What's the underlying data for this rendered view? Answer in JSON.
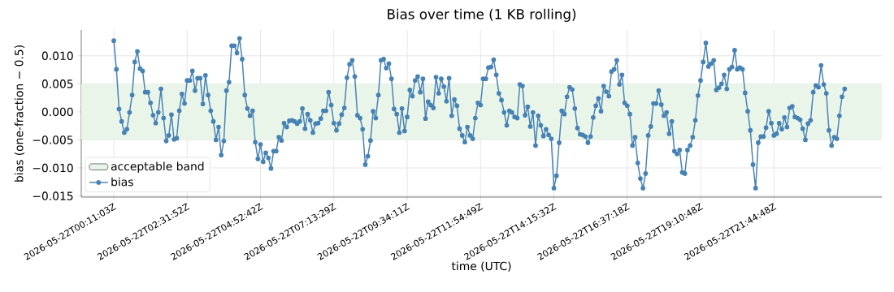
{
  "chart_data": {
    "type": "line",
    "title": "Bias over time (1 KB rolling)",
    "xlabel": "time (UTC)",
    "ylabel": "bias (one-fraction − 0.5)",
    "categories": [
      "2026-05-22T00:11:03Z",
      null,
      null,
      null,
      null,
      null,
      null,
      null,
      null,
      null,
      null,
      null,
      null,
      null,
      null,
      null,
      null,
      null,
      null,
      null,
      null,
      null,
      null,
      null,
      null,
      null,
      null,
      null,
      "2026-05-22T02:31:52Z",
      null,
      null,
      null,
      null,
      null,
      null,
      null,
      null,
      null,
      null,
      null,
      null,
      null,
      null,
      null,
      null,
      null,
      null,
      null,
      null,
      null,
      null,
      null,
      null,
      null,
      null,
      null,
      "2026-05-22T04:52:42Z",
      null,
      null,
      null,
      null,
      null,
      null,
      null,
      null,
      null,
      null,
      null,
      null,
      null,
      null,
      null,
      null,
      null,
      null,
      null,
      null,
      null,
      null,
      null,
      null,
      null,
      null,
      null,
      "2026-05-22T07:13:29Z",
      null,
      null,
      null,
      null,
      null,
      null,
      null,
      null,
      null,
      null,
      null,
      null,
      null,
      null,
      null,
      null,
      null,
      null,
      null,
      null,
      null,
      null,
      null,
      null,
      null,
      null,
      null,
      "2026-05-22T09:34:11Z",
      null,
      null,
      null,
      null,
      null,
      null,
      null,
      null,
      null,
      null,
      null,
      null,
      null,
      null,
      null,
      null,
      null,
      null,
      null,
      null,
      null,
      null,
      null,
      null,
      null,
      null,
      null,
      "2026-05-22T11:54:49Z",
      null,
      null,
      null,
      null,
      null,
      null,
      null,
      null,
      null,
      null,
      null,
      null,
      null,
      null,
      null,
      null,
      null,
      null,
      null,
      null,
      null,
      null,
      null,
      null,
      null,
      null,
      null,
      "2026-05-22T14:15:32Z",
      null,
      null,
      null,
      null,
      null,
      null,
      null,
      null,
      null,
      null,
      null,
      null,
      null,
      null,
      null,
      null,
      null,
      null,
      null,
      null,
      null,
      null,
      null,
      null,
      null,
      null,
      null,
      "2026-05-22T16:37:18Z",
      null,
      null,
      null,
      null,
      null,
      null,
      null,
      null,
      null,
      null,
      null,
      null,
      null,
      null,
      null,
      null,
      null,
      null,
      null,
      null,
      null,
      null,
      null,
      null,
      null,
      null,
      null,
      "2026-05-22T19:10:48Z",
      null,
      null,
      null,
      null,
      null,
      null,
      null,
      null,
      null,
      null,
      null,
      null,
      null,
      null,
      null,
      null,
      null,
      null,
      null,
      null,
      null,
      null,
      null,
      null,
      null,
      null,
      null,
      "2026-05-22T21:44:48Z",
      null,
      null,
      null,
      null,
      null,
      null,
      null,
      null,
      null,
      null,
      null,
      null,
      null,
      null,
      null,
      null,
      null,
      null,
      null,
      null,
      null,
      null,
      null,
      null,
      null,
      null,
      null
    ],
    "series": [
      {
        "name": "bias",
        "color": "#4682b4",
        "values": [
          0.0127,
          0.0076,
          0.0005,
          -0.0017,
          -0.0037,
          -0.0031,
          -0.0001,
          0.003,
          0.0089,
          0.0108,
          0.0077,
          0.0073,
          0.0035,
          0.0035,
          0.0016,
          -0.0006,
          -0.002,
          -0.0001,
          0.0041,
          -0.0011,
          -0.0052,
          -0.0042,
          -0.0005,
          -0.0049,
          -0.0047,
          0.0002,
          0.0032,
          0.0015,
          0.0056,
          0.0056,
          0.0073,
          0.0038,
          0.006,
          0.006,
          0.0014,
          0.0065,
          0.003,
          0.0002,
          -0.0017,
          -0.005,
          -0.0027,
          -0.0077,
          -0.0052,
          0.0038,
          0.0053,
          0.0118,
          0.0118,
          0.0105,
          0.0131,
          0.0094,
          0.003,
          0.0006,
          -0.0007,
          0.0002,
          -0.0054,
          -0.0084,
          -0.0058,
          -0.0089,
          -0.0073,
          -0.0082,
          -0.0101,
          -0.007,
          -0.007,
          -0.0045,
          -0.0051,
          -0.002,
          -0.0027,
          -0.0016,
          -0.0015,
          -0.0017,
          -0.0021,
          -0.0017,
          0.0006,
          -0.003,
          -0.0004,
          -0.0015,
          -0.0037,
          -0.0021,
          -0.002,
          -0.0012,
          0.0002,
          0.0002,
          0.0035,
          0.0012,
          -0.002,
          -0.0033,
          -0.0021,
          -0.0005,
          0.0007,
          0.0061,
          0.0085,
          0.0092,
          0.0063,
          -0.0006,
          -0.0011,
          -0.0031,
          -0.0094,
          -0.0079,
          -0.0051,
          0.0001,
          -0.0011,
          0.003,
          0.0092,
          0.0094,
          0.0078,
          0.0086,
          0.0059,
          0.0005,
          -0.0004,
          -0.0037,
          0.0006,
          -0.0034,
          -0.0009,
          0.0039,
          0.0028,
          0.0056,
          0.0063,
          0.0035,
          0.0059,
          -0.0012,
          0.0018,
          0.0012,
          0.0007,
          0.0062,
          0.0033,
          0.0059,
          0.0045,
          0.0019,
          0.006,
          -0.0007,
          0.0022,
          0.0011,
          -0.003,
          -0.0042,
          -0.0054,
          -0.0027,
          -0.0042,
          -0.0048,
          -0.0011,
          0.0016,
          0.0012,
          0.0059,
          0.0059,
          0.0079,
          0.008,
          0.0093,
          0.0066,
          0.0033,
          0.0021,
          -0.0001,
          -0.0024,
          0.0002,
          -0.0001,
          -0.0009,
          -0.0011,
          0.0049,
          0.0046,
          -0.0006,
          0.0009,
          -0.0026,
          -0.0001,
          -0.006,
          -0.0007,
          -0.0024,
          -0.0043,
          -0.0031,
          -0.0041,
          -0.0048,
          -0.0136,
          -0.0114,
          -0.0055,
          0.0002,
          -0.0004,
          0.0027,
          0.0044,
          0.004,
          0.0006,
          -0.0029,
          -0.004,
          -0.0041,
          -0.0044,
          -0.0055,
          -0.0044,
          -0.001,
          0.0011,
          0.0024,
          0.0001,
          0.0046,
          0.0036,
          0.0028,
          0.0072,
          0.0076,
          0.0092,
          0.0049,
          0.0066,
          0.0016,
          0.0011,
          -0.0004,
          -0.006,
          -0.0045,
          -0.0091,
          -0.0119,
          -0.0136,
          -0.011,
          -0.0042,
          -0.0026,
          0.0015,
          0.0015,
          0.0038,
          0.0013,
          -0.0007,
          -0.0001,
          -0.0039,
          -0.0017,
          -0.007,
          -0.0075,
          -0.0068,
          -0.0108,
          -0.011,
          -0.0068,
          -0.006,
          -0.0045,
          -0.0015,
          0.0029,
          0.0056,
          0.0089,
          0.0123,
          0.0081,
          0.0086,
          0.0092,
          0.0039,
          0.0043,
          0.005,
          0.0066,
          0.0041,
          0.0076,
          0.008,
          0.011,
          0.0076,
          0.0079,
          0.0076,
          0.0034,
          0.0001,
          -0.0033,
          -0.0094,
          -0.0136,
          -0.0055,
          -0.0044,
          -0.0044,
          -0.0028,
          0.0001,
          -0.002,
          -0.0042,
          -0.0039,
          -0.002,
          -0.0031,
          -0.001,
          -0.0027,
          0.0007,
          0.001,
          -0.0009,
          -0.0011,
          -0.0014,
          -0.003,
          -0.005,
          -0.0021,
          -0.0015,
          0.0035,
          0.0047,
          0.0044,
          0.0083,
          0.0049,
          0.0033,
          -0.0033,
          -0.006,
          -0.0045,
          -0.0048,
          -0.0007,
          0.0027,
          0.0041
        ]
      }
    ],
    "bands": [
      {
        "axis": "y",
        "from": -0.005,
        "to": 0.005,
        "label": "acceptable band",
        "color": "#eaf5ea"
      }
    ],
    "ylim": [
      -0.0152,
      0.0146
    ],
    "yticks": [
      {
        "value": -0.015,
        "label": "−0.015"
      },
      {
        "value": -0.01,
        "label": "−0.010"
      },
      {
        "value": -0.005,
        "label": "−0.005"
      },
      {
        "value": 0,
        "label": "0.000"
      },
      {
        "value": 0.005,
        "label": "0.005"
      },
      {
        "value": 0.01,
        "label": "0.010"
      }
    ],
    "grid": true,
    "legend": "bottom left",
    "marker": "circle",
    "line_style": "solid"
  }
}
